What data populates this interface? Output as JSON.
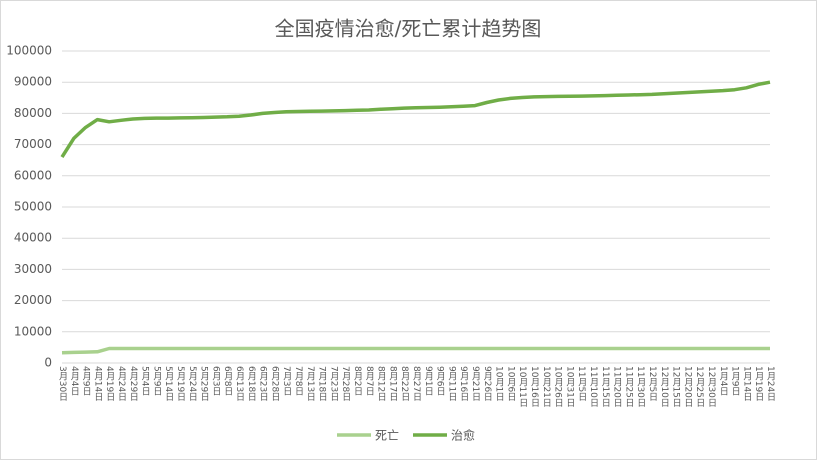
{
  "chart_data": {
    "type": "line",
    "title": "全国疫情治愈/死亡累计趋势图",
    "categories": [
      "3月30日",
      "4月4日",
      "4月9日",
      "4月14日",
      "4月19日",
      "4月24日",
      "4月29日",
      "5月4日",
      "5月9日",
      "5月14日",
      "5月19日",
      "5月24日",
      "5月29日",
      "6月3日",
      "6月8日",
      "6月13日",
      "6月18日",
      "6月23日",
      "6月28日",
      "7月3日",
      "7月8日",
      "7月13日",
      "7月18日",
      "7月23日",
      "7月28日",
      "8月2日",
      "8月7日",
      "8月12日",
      "8月17日",
      "8月22日",
      "8月27日",
      "9月1日",
      "9月6日",
      "9月11日",
      "9月16日",
      "9月21日",
      "9月26日",
      "10月1日",
      "10月6日",
      "10月11日",
      "10月16日",
      "10月21日",
      "10月26日",
      "10月31日",
      "11月5日",
      "11月10日",
      "11月15日",
      "11月20日",
      "11月25日",
      "11月30日",
      "12月5日",
      "12月10日",
      "12月15日",
      "12月20日",
      "12月25日",
      "12月30日",
      "1月4日",
      "1月9日",
      "1月14日",
      "1月19日",
      "1月24日"
    ],
    "series": [
      {
        "name": "死亡",
        "color": "#a9d18e",
        "values": [
          3300,
          3400,
          3500,
          3600,
          4632,
          4632,
          4633,
          4633,
          4633,
          4633,
          4634,
          4634,
          4634,
          4634,
          4634,
          4634,
          4634,
          4634,
          4634,
          4634,
          4634,
          4634,
          4634,
          4634,
          4634,
          4634,
          4634,
          4634,
          4634,
          4634,
          4634,
          4634,
          4634,
          4634,
          4634,
          4634,
          4634,
          4634,
          4634,
          4634,
          4634,
          4634,
          4634,
          4634,
          4634,
          4634,
          4634,
          4634,
          4634,
          4634,
          4634,
          4634,
          4634,
          4634,
          4634,
          4634,
          4634,
          4635,
          4635,
          4635,
          4635
        ]
      },
      {
        "name": "治愈",
        "color": "#70ad47",
        "values": [
          66000,
          72000,
          75500,
          78000,
          77300,
          77800,
          78200,
          78400,
          78500,
          78500,
          78550,
          78600,
          78700,
          78800,
          78900,
          79100,
          79500,
          80000,
          80300,
          80500,
          80600,
          80700,
          80750,
          80800,
          80900,
          81000,
          81100,
          81300,
          81500,
          81700,
          81800,
          81900,
          82000,
          82100,
          82300,
          82500,
          83500,
          84300,
          84800,
          85100,
          85300,
          85400,
          85450,
          85500,
          85550,
          85600,
          85700,
          85800,
          85900,
          86000,
          86100,
          86300,
          86500,
          86700,
          86900,
          87100,
          87300,
          87600,
          88200,
          89300,
          90000
        ]
      }
    ],
    "ylim": [
      0,
      100000
    ],
    "yticks": [
      0,
      10000,
      20000,
      30000,
      40000,
      50000,
      60000,
      70000,
      80000,
      90000,
      100000
    ],
    "grid": true,
    "legend": "bottom"
  }
}
